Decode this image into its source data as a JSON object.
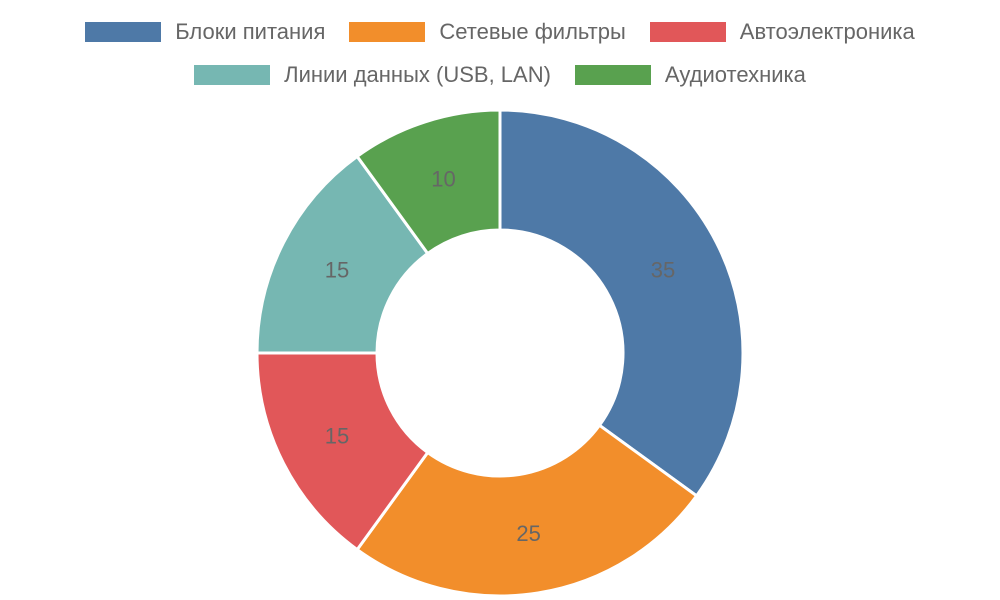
{
  "chart_data": {
    "type": "pie",
    "variant": "donut",
    "legend_position": "top",
    "series": [
      {
        "name": "Блоки питания",
        "value": 35,
        "color": "#4e79a7"
      },
      {
        "name": "Сетевые фильтры",
        "value": 25,
        "color": "#f28e2b"
      },
      {
        "name": "Автоэлектроника",
        "value": 15,
        "color": "#e15759"
      },
      {
        "name": "Линии данных (USB, LAN)",
        "value": 15,
        "color": "#76b7b2"
      },
      {
        "name": "Аудиотехника",
        "value": 10,
        "color": "#59a14f"
      }
    ],
    "data_labels": [
      "35",
      "25",
      "15",
      "15",
      "10"
    ]
  }
}
